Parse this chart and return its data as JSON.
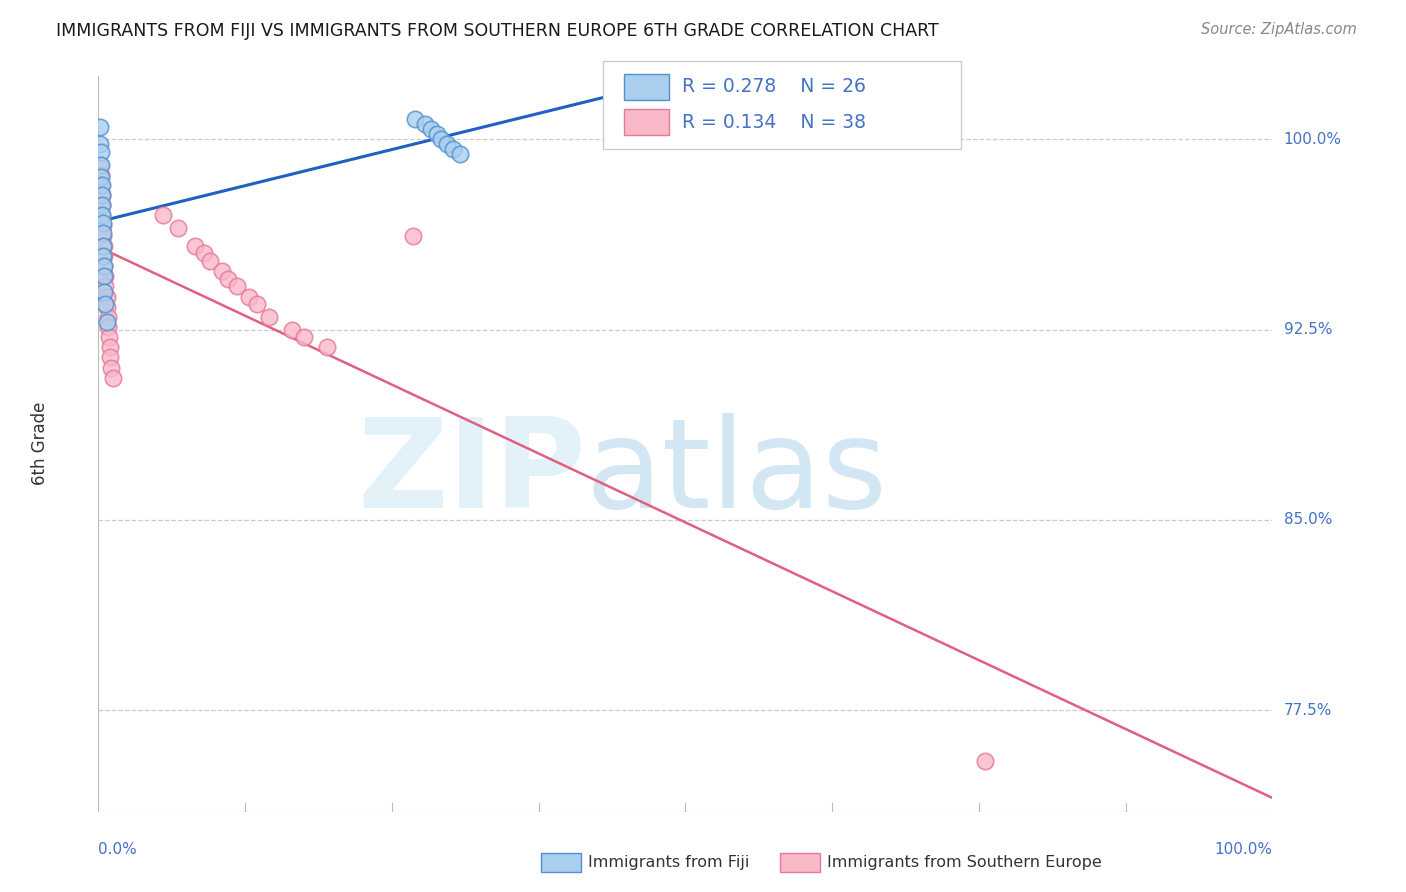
{
  "title": "IMMIGRANTS FROM FIJI VS IMMIGRANTS FROM SOUTHERN EUROPE 6TH GRADE CORRELATION CHART",
  "source": "Source: ZipAtlas.com",
  "ylabel": "6th Grade",
  "ytick_labels": [
    "100.0%",
    "92.5%",
    "85.0%",
    "77.5%"
  ],
  "ytick_values": [
    1.0,
    0.925,
    0.85,
    0.775
  ],
  "x_min": 0.0,
  "x_max": 1.0,
  "y_min": 0.735,
  "y_max": 1.025,
  "legend_fiji_R": "0.278",
  "legend_fiji_N": "26",
  "legend_south_R": "0.134",
  "legend_south_N": "38",
  "fiji_face_color": "#aacfee",
  "fiji_edge_color": "#5090d0",
  "south_face_color": "#f8b8c8",
  "south_edge_color": "#e87898",
  "fiji_line_color": "#2060c0",
  "south_line_color": "#e06080",
  "grid_color": "#cccccc",
  "axis_label_color": "#4472c4",
  "fiji_x": [
    0.001,
    0.001,
    0.002,
    0.002,
    0.002,
    0.003,
    0.003,
    0.003,
    0.003,
    0.004,
    0.004,
    0.004,
    0.004,
    0.005,
    0.005,
    0.005,
    0.006,
    0.007,
    0.27,
    0.278,
    0.283,
    0.288,
    0.292,
    0.297,
    0.302,
    0.308
  ],
  "fiji_y": [
    1.005,
    0.998,
    0.995,
    0.99,
    0.985,
    0.982,
    0.978,
    0.974,
    0.97,
    0.967,
    0.963,
    0.958,
    0.954,
    0.95,
    0.946,
    0.94,
    0.935,
    0.928,
    1.008,
    1.006,
    1.004,
    1.002,
    1.0,
    0.998,
    0.996,
    0.994
  ],
  "south_x": [
    0.001,
    0.002,
    0.002,
    0.003,
    0.003,
    0.003,
    0.004,
    0.004,
    0.005,
    0.005,
    0.005,
    0.006,
    0.006,
    0.007,
    0.007,
    0.008,
    0.008,
    0.009,
    0.01,
    0.01,
    0.011,
    0.012,
    0.055,
    0.068,
    0.082,
    0.09,
    0.095,
    0.105,
    0.11,
    0.118,
    0.128,
    0.135,
    0.145,
    0.165,
    0.175,
    0.195,
    0.268,
    0.755
  ],
  "south_y": [
    0.99,
    0.986,
    0.982,
    0.978,
    0.974,
    0.97,
    0.966,
    0.962,
    0.958,
    0.954,
    0.95,
    0.946,
    0.942,
    0.938,
    0.934,
    0.93,
    0.926,
    0.922,
    0.918,
    0.914,
    0.91,
    0.906,
    0.97,
    0.965,
    0.958,
    0.955,
    0.952,
    0.948,
    0.945,
    0.942,
    0.938,
    0.935,
    0.93,
    0.925,
    0.922,
    0.918,
    0.962,
    0.755
  ],
  "bottom_legend": [
    "Immigrants from Fiji",
    "Immigrants from Southern Europe"
  ],
  "tick_line_positions": [
    0.125,
    0.25,
    0.375,
    0.5,
    0.625,
    0.75,
    0.875
  ]
}
